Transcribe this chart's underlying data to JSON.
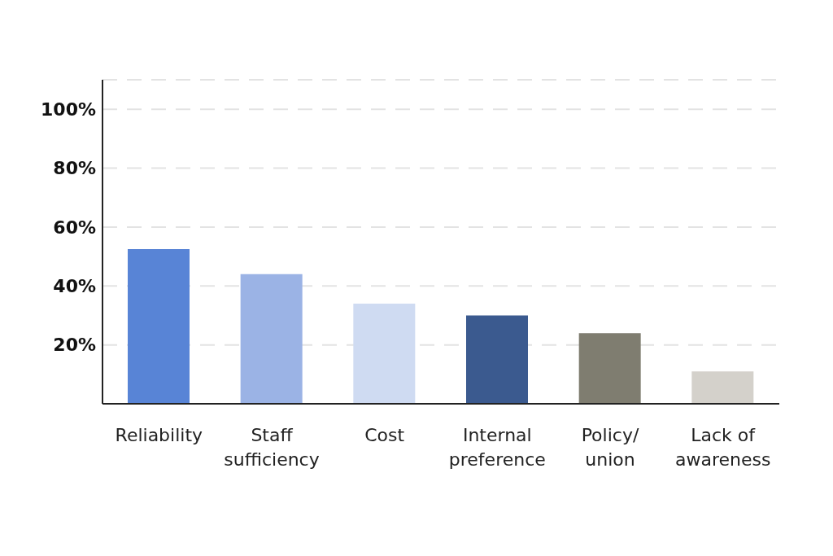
{
  "chart_data": {
    "type": "bar",
    "categories": [
      "Reliability",
      "Staff sufficiency",
      "Cost",
      "Internal preference",
      "Policy/ union",
      "Lack of awareness"
    ],
    "values": [
      52.5,
      44,
      34,
      30,
      24,
      11
    ],
    "colors": [
      "#5884d6",
      "#9bb3e5",
      "#cfdbf2",
      "#3b5a8f",
      "#7f7d70",
      "#d4d1cb"
    ],
    "ylim": [
      0,
      110
    ],
    "yticks": [
      {
        "value": 20,
        "label": "20%"
      },
      {
        "value": 40,
        "label": "40%"
      },
      {
        "value": 60,
        "label": "60%"
      },
      {
        "value": 80,
        "label": "80%"
      },
      {
        "value": 100,
        "label": "100%"
      }
    ],
    "grid": "y"
  }
}
